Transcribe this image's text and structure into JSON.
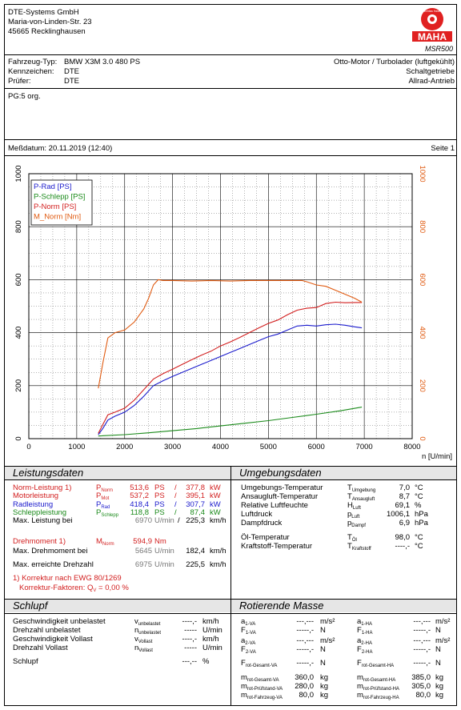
{
  "company": {
    "name": "DTE-Systems GmbH",
    "street": "Maria-von-Linden-Str. 23",
    "city": "45665 Recklinghausen"
  },
  "logo": {
    "arc_text": "Maschinenbau Haldenwang",
    "brand": "MAHA",
    "model": "MSR500"
  },
  "vehicle": {
    "type_label": "Fahrzeug-Typ:",
    "type_value": "BMW X3M 3.0 480 PS",
    "plate_label": "Kennzeichen:",
    "plate_value": "DTE",
    "tester_label": "Prüfer:",
    "tester_value": "DTE",
    "engine": "Otto-Motor / Turbolader (luftgekühlt)",
    "gearbox": "Schaltgetriebe",
    "drive": "Allrad-Antrieb"
  },
  "remark": "PG:5 org.",
  "measure": {
    "date_label": "Meßdatum: 20.11.2019 (12:40)",
    "page": "Seite 1"
  },
  "chart_data": {
    "type": "line",
    "xlabel": "n [U/min]",
    "xlim": [
      0,
      8000
    ],
    "ylim": [
      0,
      1000
    ],
    "x_ticks": [
      "0",
      "1000",
      "2000",
      "3000",
      "4000",
      "5000",
      "6000",
      "7000",
      "8000"
    ],
    "y_ticks": [
      "0",
      "200",
      "400",
      "600",
      "800",
      "1000"
    ],
    "grid": true,
    "legend_position": "top-left",
    "series": [
      {
        "name": "P-Rad [PS]",
        "color": "#1a1acc",
        "x": [
          1450,
          1550,
          1650,
          1800,
          2000,
          2200,
          2400,
          2600,
          2800,
          3000,
          3200,
          3400,
          3600,
          3800,
          4000,
          4200,
          4400,
          4600,
          4800,
          5000,
          5200,
          5400,
          5600,
          5800,
          6000,
          6200,
          6400,
          6600,
          6800,
          6950
        ],
        "y": [
          15,
          40,
          70,
          85,
          100,
          125,
          160,
          200,
          218,
          235,
          250,
          265,
          280,
          295,
          310,
          325,
          340,
          355,
          370,
          385,
          395,
          410,
          425,
          428,
          425,
          430,
          432,
          428,
          422,
          418
        ]
      },
      {
        "name": "P-Schlepp [PS]",
        "color": "#1a8a1a",
        "x": [
          1450,
          2000,
          2500,
          3000,
          3500,
          4000,
          4500,
          5000,
          5500,
          6000,
          6500,
          6950
        ],
        "y": [
          10,
          15,
          22,
          30,
          38,
          48,
          58,
          68,
          80,
          92,
          105,
          119
        ]
      },
      {
        "name": "P-Norm [PS]",
        "color": "#d21e1e",
        "x": [
          1450,
          1550,
          1650,
          1800,
          2000,
          2200,
          2400,
          2600,
          2800,
          3000,
          3200,
          3400,
          3600,
          3800,
          4000,
          4200,
          4400,
          4600,
          4800,
          5000,
          5200,
          5400,
          5600,
          5800,
          6000,
          6200,
          6400,
          6600,
          6800,
          6950
        ],
        "y": [
          20,
          55,
          90,
          100,
          115,
          145,
          185,
          225,
          245,
          262,
          280,
          298,
          315,
          330,
          350,
          365,
          382,
          400,
          418,
          435,
          448,
          468,
          485,
          492,
          495,
          510,
          515,
          513,
          514,
          514
        ]
      },
      {
        "name": "M_Norm [Nm]",
        "color": "#e05a10",
        "x": [
          1450,
          1550,
          1650,
          1800,
          2000,
          2200,
          2400,
          2500,
          2600,
          2700,
          2800,
          3000,
          3400,
          3800,
          4200,
          4600,
          5000,
          5400,
          5700,
          5800,
          6000,
          6200,
          6400,
          6600,
          6800,
          6950
        ],
        "y": [
          190,
          290,
          380,
          400,
          410,
          440,
          490,
          530,
          580,
          600,
          597,
          597,
          595,
          597,
          595,
          597,
          597,
          597,
          597,
          592,
          580,
          575,
          560,
          545,
          530,
          515
        ]
      }
    ]
  },
  "leistung": {
    "title": "Leistungsdaten",
    "rows": [
      {
        "label": "Norm-Leistung 1)",
        "sym": "P",
        "sub": "Norm",
        "v1": "513,6",
        "u1": "PS",
        "sep": "/",
        "v2": "377,8",
        "u2": "kW",
        "cls": "red"
      },
      {
        "label": "Motorleistung",
        "sym": "P",
        "sub": "Mot",
        "v1": "537,2",
        "u1": "PS",
        "sep": "/",
        "v2": "395,1",
        "u2": "kW",
        "cls": "red"
      },
      {
        "label": "Radleistung",
        "sym": "P",
        "sub": "Rad",
        "v1": "418,4",
        "u1": "PS",
        "sep": "/",
        "v2": "307,7",
        "u2": "kW",
        "cls": "blue"
      },
      {
        "label": "Schleppleistung",
        "sym": "P",
        "sub": "Schlepp",
        "v1": "118,8",
        "u1": "PS",
        "sep": "/",
        "v2": "87,4",
        "u2": "kW",
        "cls": "green"
      }
    ],
    "maxp": {
      "label": "Max. Leistung bei",
      "v1": "6970",
      "u1": "U/min",
      "sep": "/",
      "v2": "225,3",
      "u2": "km/h"
    },
    "dreh": {
      "label": "Drehmoment 1)",
      "sym": "M",
      "sub": "Norm",
      "v": "594,9",
      "u": "Nm"
    },
    "maxd": {
      "label": "Max. Drehmoment bei",
      "v1": "5645",
      "u1": "U/min",
      "v2": "182,4",
      "u2": "km/h"
    },
    "maxn": {
      "label": "Max. erreichte Drehzahl",
      "v1": "6975",
      "u1": "U/min",
      "v2": "225,5",
      "u2": "km/h"
    },
    "note1": "1) Korrektur nach EWG 80/1269",
    "note2": "Korrektur-Faktoren: Q",
    "note2_sub": "V",
    "note2_val": "=   0,00 %"
  },
  "umgebung": {
    "title": "Umgebungsdaten",
    "rows": [
      {
        "label": "Umgebungs-Temperatur",
        "sym": "T",
        "sub": "Umgebung",
        "v": "7,0",
        "u": "°C"
      },
      {
        "label": "Ansaugluft-Temperatur",
        "sym": "T",
        "sub": "Ansaugluft",
        "v": "8,7",
        "u": "°C"
      },
      {
        "label": "Relative Luftfeuchte",
        "sym": "H",
        "sub": "Luft",
        "v": "69,1",
        "u": "%"
      },
      {
        "label": "Luftdruck",
        "sym": "p",
        "sub": "Luft",
        "v": "1006,1",
        "u": "hPa"
      },
      {
        "label": "Dampfdruck",
        "sym": "p",
        "sub": "Dampf",
        "v": "6,9",
        "u": "hPa"
      },
      {
        "label": "Öl-Temperatur",
        "sym": "T",
        "sub": "Öl",
        "v": "98,0",
        "u": "°C"
      },
      {
        "label": "Kraftstoff-Temperatur",
        "sym": "T",
        "sub": "Kraftstoff",
        "v": "----,-",
        "u": "°C"
      }
    ]
  },
  "schlupf": {
    "title": "Schlupf",
    "rows": [
      {
        "label": "Geschwindigkeit unbelastet",
        "sym": "v",
        "sub": "unbelastet",
        "v": "----,-",
        "u": "km/h"
      },
      {
        "label": "Drehzahl unbelastet",
        "sym": "n",
        "sub": "unbelastet",
        "v": "-----",
        "u": "U/min"
      },
      {
        "label": "Geschwindigkeit Vollast",
        "sym": "v",
        "sub": "Vollast",
        "v": "----,-",
        "u": "km/h"
      },
      {
        "label": "Drehzahl Vollast",
        "sym": "n",
        "sub": "Vollast",
        "v": "-----",
        "u": "U/min"
      },
      {
        "label": "Schlupf",
        "sym": "",
        "sub": "",
        "v": "---,--",
        "u": "%"
      }
    ]
  },
  "rotierend": {
    "title": "Rotierende Masse",
    "left": [
      {
        "sym": "a",
        "sub": "1-VA",
        "v": "---,---",
        "u": "m/s²"
      },
      {
        "sym": "F",
        "sub": "1-VA",
        "v": "-----,-",
        "u": "N"
      },
      {
        "sym": "a",
        "sub": "2-VA",
        "v": "---,---",
        "u": "m/s²"
      },
      {
        "sym": "F",
        "sub": "2-VA",
        "v": "-----,-",
        "u": "N"
      },
      {
        "sym": "F",
        "sub": "rot-Gesamt-VA",
        "v": "-----,-",
        "u": "N"
      },
      {
        "sym": "m",
        "sub": "rot-Gesamt-VA",
        "v": "360,0",
        "u": "kg"
      },
      {
        "sym": "m",
        "sub": "rot-Prüfstand-VA",
        "v": "280,0",
        "u": "kg"
      },
      {
        "sym": "m",
        "sub": "rot-Fahrzeug-VA",
        "v": "80,0",
        "u": "kg"
      }
    ],
    "right": [
      {
        "sym": "a",
        "sub": "1-HA",
        "v": "---,---",
        "u": "m/s²"
      },
      {
        "sym": "F",
        "sub": "1-HA",
        "v": "-----,-",
        "u": "N"
      },
      {
        "sym": "a",
        "sub": "2-HA",
        "v": "---,---",
        "u": "m/s²"
      },
      {
        "sym": "F",
        "sub": "2-HA",
        "v": "-----,-",
        "u": "N"
      },
      {
        "sym": "F",
        "sub": "rot-Gesamt-HA",
        "v": "-----,-",
        "u": "N"
      },
      {
        "sym": "m",
        "sub": "rot-Gesamt-HA",
        "v": "385,0",
        "u": "kg"
      },
      {
        "sym": "m",
        "sub": "rot-Prüfstand-HA",
        "v": "305,0",
        "u": "kg"
      },
      {
        "sym": "m",
        "sub": "rot-Fahrzeug-HA",
        "v": "80,0",
        "u": "kg"
      }
    ]
  }
}
